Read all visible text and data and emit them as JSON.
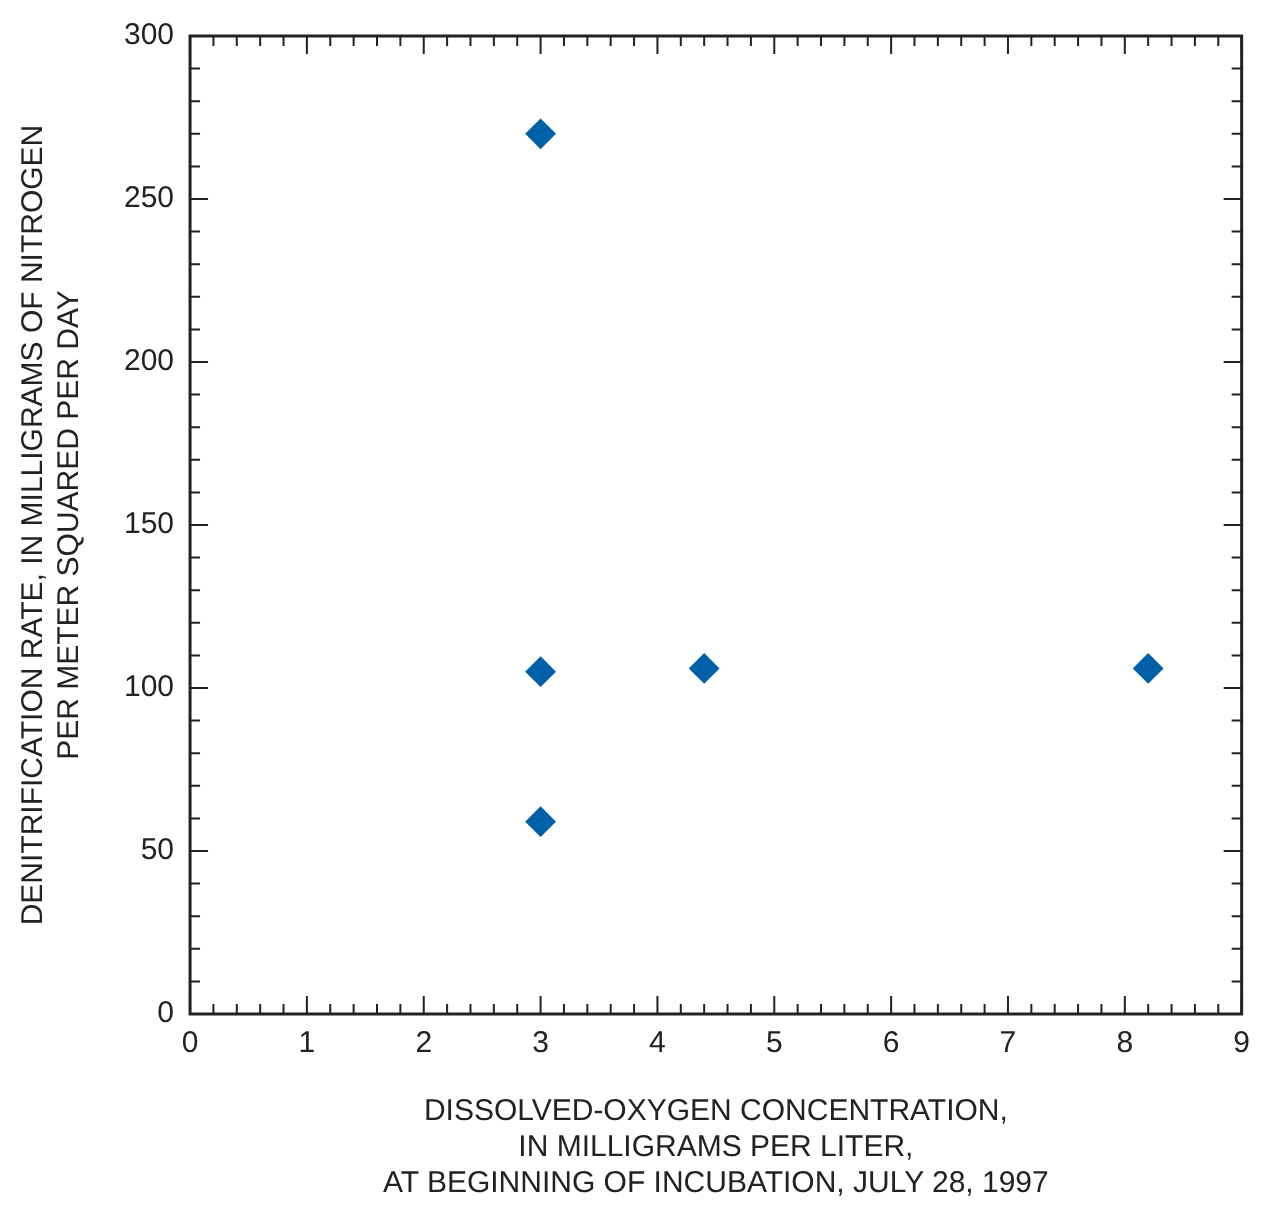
{
  "chart_data": {
    "type": "scatter",
    "xlabel": "DISSOLVED-OXYGEN CONCENTRATION,\nIN MILLIGRAMS PER LITER,\nAT BEGINNING OF INCUBATION, JULY 28, 1997",
    "ylabel": "DENITRIFICATION RATE, IN MILLIGRAMS OF NITROGEN\nPER METER SQUARED PER DAY",
    "x": [
      3,
      3,
      3,
      4.4,
      8.2
    ],
    "values": [
      270,
      105,
      59,
      106,
      106
    ],
    "color": "#0060a8",
    "marker": "diamond",
    "xlim": [
      0,
      9
    ],
    "xticks": [
      0,
      1,
      2,
      3,
      4,
      5,
      6,
      7,
      8,
      9
    ],
    "ylim": [
      0,
      300
    ],
    "yticks": [
      0,
      50,
      100,
      150,
      200,
      250,
      300
    ],
    "grid": false,
    "legend": false
  }
}
